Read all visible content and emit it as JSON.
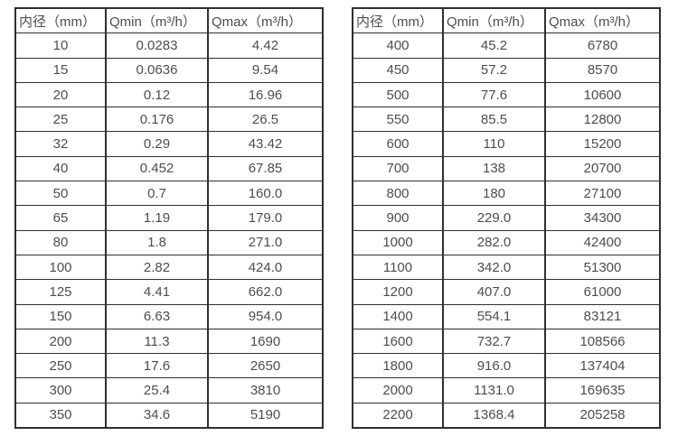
{
  "theme": {
    "text_color": "#4d4d4d",
    "border_color": "#303030",
    "background": "#ffffff"
  },
  "tables": [
    {
      "name": "flow-rate-table-small-diameters",
      "columns": [
        "内径（mm）",
        "Qmin（m³/h）",
        "Qmax（m³/h）"
      ],
      "rows": [
        [
          "10",
          "0.0283",
          "4.42"
        ],
        [
          "15",
          "0.0636",
          "9.54"
        ],
        [
          "20",
          "0.12",
          "16.96"
        ],
        [
          "25",
          "0.176",
          "26.5"
        ],
        [
          "32",
          "0.29",
          "43.42"
        ],
        [
          "40",
          "0.452",
          "67.85"
        ],
        [
          "50",
          "0.7",
          "160.0"
        ],
        [
          "65",
          "1.19",
          "179.0"
        ],
        [
          "80",
          "1.8",
          "271.0"
        ],
        [
          "100",
          "2.82",
          "424.0"
        ],
        [
          "125",
          "4.41",
          "662.0"
        ],
        [
          "150",
          "6.63",
          "954.0"
        ],
        [
          "200",
          "11.3",
          "1690"
        ],
        [
          "250",
          "17.6",
          "2650"
        ],
        [
          "300",
          "25.4",
          "3810"
        ],
        [
          "350",
          "34.6",
          "5190"
        ]
      ]
    },
    {
      "name": "flow-rate-table-large-diameters",
      "columns": [
        "内径（mm）",
        "Qmin（m³/h）",
        "Qmax（m³/h）"
      ],
      "rows": [
        [
          "400",
          "45.2",
          "6780"
        ],
        [
          "450",
          "57.2",
          "8570"
        ],
        [
          "500",
          "77.6",
          "10600"
        ],
        [
          "550",
          "85.5",
          "12800"
        ],
        [
          "600",
          "110",
          "15200"
        ],
        [
          "700",
          "138",
          "20700"
        ],
        [
          "800",
          "180",
          "27100"
        ],
        [
          "900",
          "229.0",
          "34300"
        ],
        [
          "1000",
          "282.0",
          "42400"
        ],
        [
          "1100",
          "342.0",
          "51300"
        ],
        [
          "1200",
          "407.0",
          "61000"
        ],
        [
          "1400",
          "554.1",
          "83121"
        ],
        [
          "1600",
          "732.7",
          "108566"
        ],
        [
          "1800",
          "916.0",
          "137404"
        ],
        [
          "2000",
          "1131.0",
          "169635"
        ],
        [
          "2200",
          "1368.4",
          "205258"
        ]
      ]
    }
  ]
}
